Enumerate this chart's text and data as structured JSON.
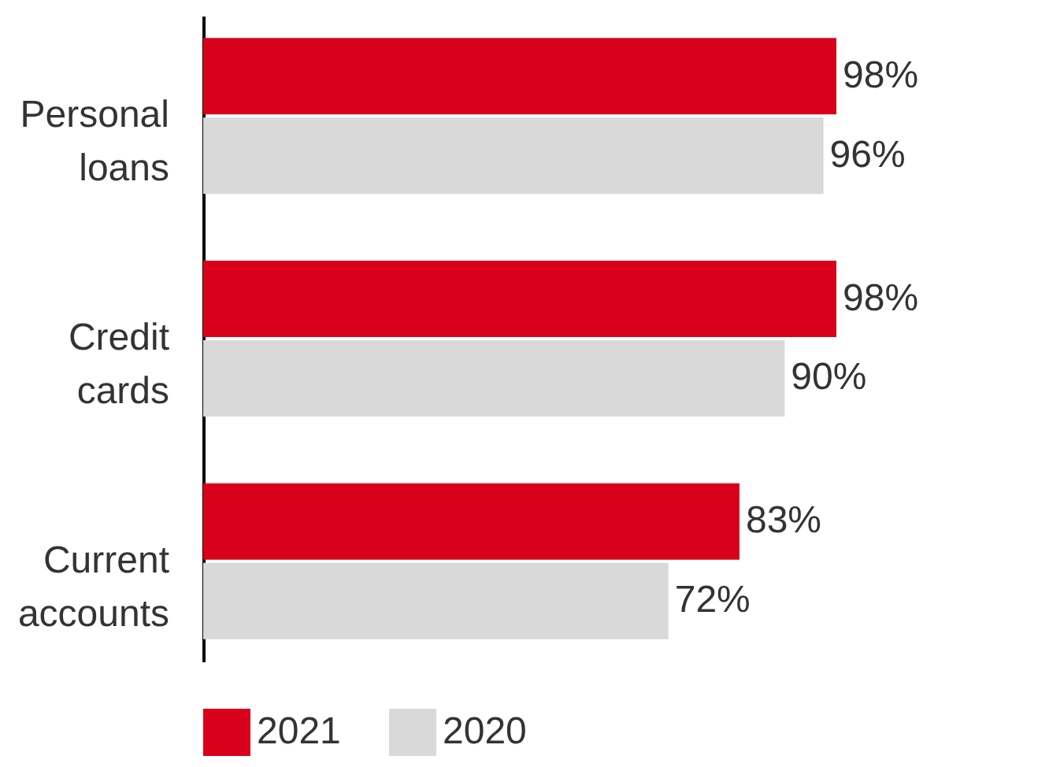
{
  "chart_data": {
    "type": "bar",
    "orientation": "horizontal",
    "categories": [
      "Personal loans",
      "Credit cards",
      "Current accounts"
    ],
    "series": [
      {
        "name": "2021",
        "color": "#d9001b",
        "values": [
          98,
          98,
          83
        ],
        "value_labels": [
          "98%",
          "98%",
          "83%"
        ]
      },
      {
        "name": "2020",
        "color": "#d9d9d9",
        "values": [
          96,
          90,
          72
        ],
        "value_labels": [
          "96%",
          "90%",
          "72%"
        ]
      }
    ],
    "legend": "bottom",
    "grid": false
  }
}
